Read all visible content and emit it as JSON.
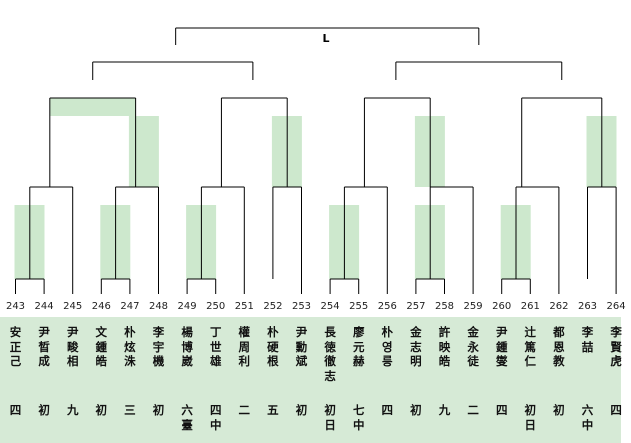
{
  "bracket": {
    "final_label": "L",
    "players": [
      {
        "seed": "243",
        "name": "安正己",
        "rank": "四"
      },
      {
        "seed": "244",
        "name": "尹晳成",
        "rank": "初"
      },
      {
        "seed": "245",
        "name": "尹畯相",
        "rank": "九"
      },
      {
        "seed": "246",
        "name": "文鍾皓",
        "rank": "初"
      },
      {
        "seed": "247",
        "name": "朴炫洙",
        "rank": "三"
      },
      {
        "seed": "248",
        "name": "李宇機",
        "rank": "初"
      },
      {
        "seed": "249",
        "name": "楊博崴",
        "rank": "六臺"
      },
      {
        "seed": "250",
        "name": "丁世雄",
        "rank": "四中"
      },
      {
        "seed": "251",
        "name": "權周利",
        "rank": "二"
      },
      {
        "seed": "252",
        "name": "朴硬根",
        "rank": "五"
      },
      {
        "seed": "253",
        "name": "尹勳斌",
        "rank": "初"
      },
      {
        "seed": "254",
        "name": "長徳徹志",
        "rank": "初日"
      },
      {
        "seed": "255",
        "name": "廖元赫",
        "rank": "七中"
      },
      {
        "seed": "256",
        "name": "朴영릉",
        "rank": "四"
      },
      {
        "seed": "257",
        "name": "金志明",
        "rank": "初"
      },
      {
        "seed": "258",
        "name": "許映皓",
        "rank": "九"
      },
      {
        "seed": "259",
        "name": "金永徒",
        "rank": "二"
      },
      {
        "seed": "260",
        "name": "尹鍾燮",
        "rank": "四"
      },
      {
        "seed": "261",
        "name": "辻篤仁",
        "rank": "初日"
      },
      {
        "seed": "262",
        "name": "都恩教",
        "rank": "初"
      },
      {
        "seed": "263",
        "name": "李喆",
        "rank": "六中"
      },
      {
        "seed": "264",
        "name": "李賢虎",
        "rank": "四"
      }
    ]
  },
  "colors": {
    "line": "#000000",
    "highlight": "#cde8cd",
    "panel": "#d6ead6"
  }
}
